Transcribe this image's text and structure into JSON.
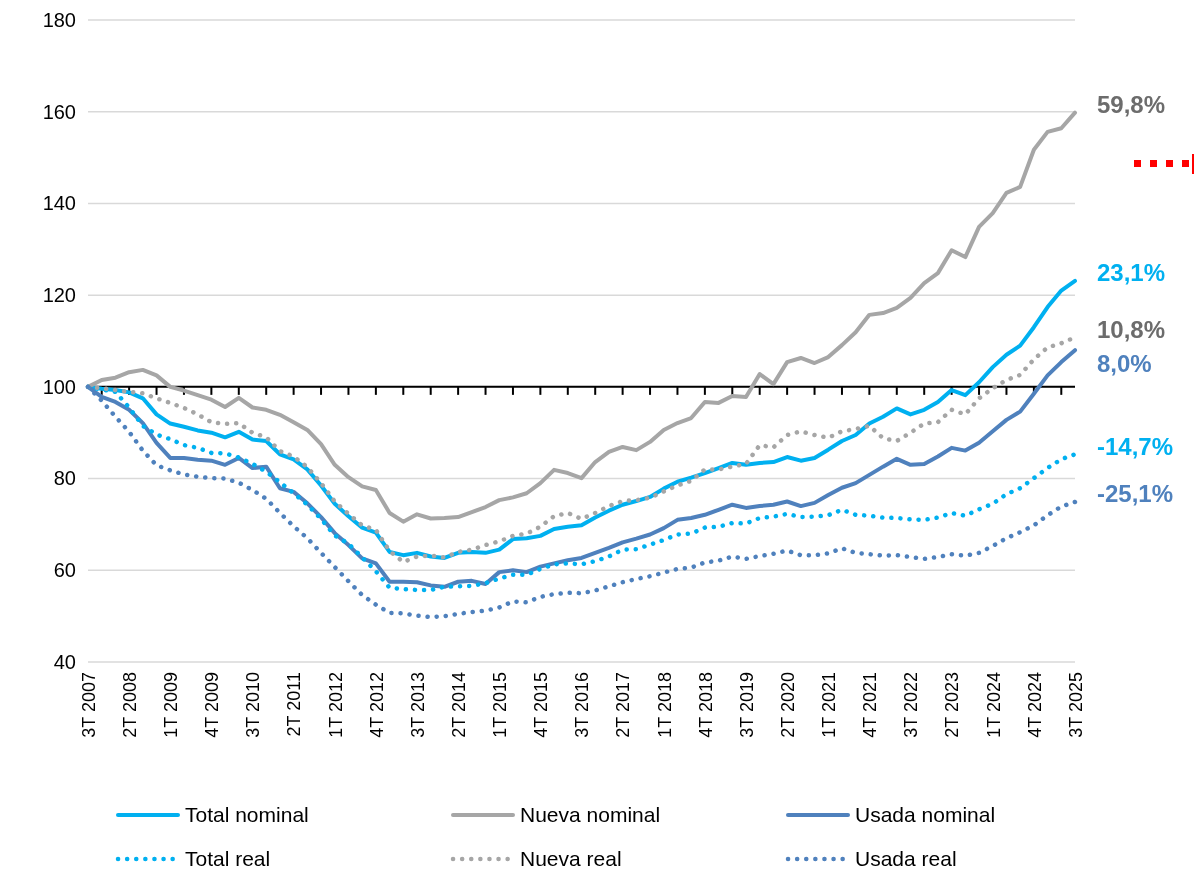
{
  "chart_data": {
    "type": "line",
    "categories": [
      "3T 2007",
      null,
      null,
      "2T 2008",
      null,
      null,
      "1T 2009",
      null,
      null,
      "4T 2009",
      null,
      null,
      "3T 2010",
      null,
      null,
      "2T 2011",
      null,
      null,
      "1T 2012",
      null,
      null,
      "4T 2012",
      null,
      null,
      "3T 2013",
      null,
      null,
      "2T 2014",
      null,
      null,
      "1T 2015",
      null,
      null,
      "4T 2015",
      null,
      null,
      "3T 2016",
      null,
      null,
      "2T 2017",
      null,
      null,
      "1T 2018",
      null,
      null,
      "4T 2018",
      null,
      null,
      "3T 2019",
      null,
      null,
      "2T 2020",
      null,
      null,
      "1T 2021",
      null,
      null,
      "4T 2021",
      null,
      null,
      "3T 2022",
      null,
      null,
      "2T 2023",
      null,
      null,
      "1T 2024",
      null,
      null,
      "4T 2024",
      null,
      null,
      "3T 2025"
    ],
    "series": [
      {
        "name": "Total nominal",
        "color": "#00b0f0",
        "line_style": "solid",
        "values": [
          100,
          99.6,
          99.3,
          98.8,
          97.5,
          94,
          92,
          91.3,
          90.5,
          90,
          89,
          90.2,
          88.5,
          88.2,
          85.3,
          84.2,
          82,
          78.5,
          74.5,
          71.8,
          69.3,
          68.2,
          64,
          63.3,
          63.8,
          63,
          62.7,
          63.8,
          64,
          63.8,
          64.5,
          66.8,
          67,
          67.5,
          69,
          69.5,
          69.8,
          71.5,
          73,
          74.3,
          75.1,
          76,
          77.8,
          79.3,
          80.2,
          81.2,
          82.3,
          83.4,
          83,
          83.4,
          83.6,
          84.7,
          83.9,
          84.5,
          86.3,
          88.2,
          89.5,
          92,
          93.5,
          95.3,
          94,
          95,
          96.7,
          99.3,
          98.2,
          101,
          104.3,
          107,
          109,
          113,
          117.4,
          121,
          123.1
        ]
      },
      {
        "name": "Nueva nominal",
        "color": "#a6a6a6",
        "line_style": "solid",
        "values": [
          100,
          101.5,
          102,
          103.2,
          103.7,
          102.5,
          100,
          99.2,
          98.2,
          97.2,
          95.6,
          97.6,
          95.5,
          95,
          93.9,
          92.3,
          90.6,
          87.5,
          83,
          80.3,
          78.3,
          77.5,
          72.5,
          70.6,
          72.2,
          71.3,
          71.4,
          71.6,
          72.7,
          73.8,
          75.3,
          75.9,
          76.8,
          79,
          81.9,
          81.2,
          80.1,
          83.6,
          85.8,
          86.9,
          86.2,
          88,
          90.6,
          92.1,
          93.2,
          96.7,
          96.5,
          98,
          97.8,
          102.8,
          100.6,
          105.4,
          106.3,
          105.2,
          106.5,
          109.1,
          111.9,
          115.7,
          116.1,
          117.2,
          119.4,
          122.6,
          124.8,
          129.8,
          128.3,
          134.9,
          137.9,
          142.3,
          143.6,
          151.7,
          155.6,
          156.4,
          159.8
        ]
      },
      {
        "name": "Usada nominal",
        "color": "#4f81bd",
        "line_style": "solid",
        "values": [
          100,
          97.8,
          96.7,
          95,
          92.1,
          87.8,
          84.5,
          84.5,
          84.1,
          83.9,
          83,
          84.5,
          82.3,
          82.6,
          77.9,
          77.1,
          74.6,
          71.6,
          68.1,
          65.5,
          62.6,
          61.5,
          57.5,
          57.5,
          57.4,
          56.7,
          56.4,
          57.5,
          57.7,
          57,
          59.6,
          60,
          59.6,
          60.8,
          61.5,
          62.2,
          62.7,
          63.8,
          64.9,
          66.1,
          66.9,
          67.8,
          69.2,
          71,
          71.4,
          72.1,
          73.2,
          74.3,
          73.6,
          74,
          74.3,
          75,
          74,
          74.7,
          76.4,
          78,
          79,
          80.8,
          82.6,
          84.3,
          83,
          83.2,
          84.8,
          86.7,
          86.1,
          87.8,
          90.3,
          92.8,
          94.6,
          98.5,
          102.5,
          105.4,
          108
        ]
      },
      {
        "name": "Total real",
        "color": "#00b0f0",
        "line_style": "dotted",
        "values": [
          100,
          99.4,
          98.9,
          95.5,
          91.5,
          89.6,
          88.6,
          87.3,
          86.7,
          85.6,
          85.5,
          84.6,
          83.2,
          81.5,
          79.2,
          76.8,
          74.3,
          71.2,
          67.6,
          65.8,
          62.8,
          59.8,
          56.2,
          55.9,
          55.7,
          55.7,
          56.4,
          56.5,
          56.6,
          57.2,
          58.2,
          59,
          59,
          60.3,
          61.3,
          61.5,
          61.3,
          62,
          63,
          64.5,
          64.6,
          65.6,
          66.6,
          67.8,
          68,
          69.3,
          69.5,
          70.3,
          70.2,
          71.4,
          71.7,
          72.3,
          71.6,
          71.7,
          72,
          73.2,
          72.1,
          71.9,
          71.5,
          71.4,
          71.1,
          71,
          71.5,
          72.5,
          71.9,
          73.3,
          74.5,
          76.6,
          77.9,
          80.1,
          82.3,
          84.2,
          85.3
        ]
      },
      {
        "name": "Nueva real",
        "color": "#a6a6a6",
        "line_style": "dotted",
        "values": [
          100,
          99.7,
          99.3,
          98.9,
          98.6,
          97.5,
          96.5,
          95.4,
          94,
          92.3,
          91.9,
          92.1,
          90,
          89,
          86,
          84.8,
          82.5,
          79,
          75,
          72.3,
          69.8,
          68.8,
          64.2,
          61.8,
          63,
          63.2,
          62.8,
          64,
          64.5,
          65.5,
          66.3,
          67.5,
          68,
          69.5,
          71.8,
          72.5,
          71.2,
          72.5,
          74,
          75.1,
          75.3,
          75.8,
          77.2,
          78.5,
          79.5,
          82,
          82,
          82.6,
          83.2,
          87.3,
          86.8,
          89.5,
          90.3,
          89.5,
          88.9,
          90.3,
          90.8,
          91.5,
          88.8,
          88.2,
          90,
          92,
          92.3,
          95,
          94,
          97.5,
          99.7,
          101.5,
          102.6,
          106,
          108.6,
          109.5,
          110.8
        ]
      },
      {
        "name": "Usada real",
        "color": "#4f81bd",
        "line_style": "dotted",
        "values": [
          100,
          97,
          93.5,
          90.2,
          86.1,
          82.9,
          81.8,
          80.9,
          80.4,
          80.1,
          80,
          79.1,
          77.5,
          75.6,
          72.5,
          69.6,
          67,
          63.8,
          60.7,
          57.6,
          54.6,
          52.5,
          50.7,
          50.6,
          50.1,
          49.8,
          50,
          50.5,
          50.9,
          51.2,
          51.9,
          53.2,
          53,
          54.2,
          54.8,
          55.1,
          55,
          55.6,
          56.5,
          57.4,
          58.1,
          58.7,
          59.5,
          60.3,
          60.6,
          61.7,
          62.1,
          63,
          62.5,
          63.1,
          63.6,
          64.3,
          63.3,
          63.3,
          63.7,
          64.8,
          63.8,
          63.5,
          63.2,
          63.3,
          62.9,
          62.5,
          62.9,
          63.5,
          63.2,
          63.8,
          65.3,
          67,
          68.3,
          69.8,
          72,
          73.9,
          74.9
        ]
      }
    ],
    "ylim": [
      40,
      180
    ],
    "yticks": [
      40,
      60,
      80,
      100,
      120,
      140,
      160,
      180
    ],
    "grid": "y",
    "ref_lines": [
      {
        "axis": "y",
        "value": 100,
        "color": "#000000"
      }
    ],
    "legend": "bottom",
    "marker": "none",
    "annotations": [
      {
        "text": "59,8%",
        "x": "3T 2025",
        "y": 159.8
      },
      {
        "text": "23,1%",
        "x": "3T 2025",
        "y": 123.1
      },
      {
        "text": "10,8%",
        "x": "3T 2025",
        "y": 110.8
      },
      {
        "text": "8,0%",
        "x": "3T 2025",
        "y": 108
      },
      {
        "text": "-14,7%",
        "x": "3T 2025",
        "y": 85.3
      },
      {
        "text": "-25,1%",
        "x": "3T 2025",
        "y": 74.9
      }
    ]
  }
}
